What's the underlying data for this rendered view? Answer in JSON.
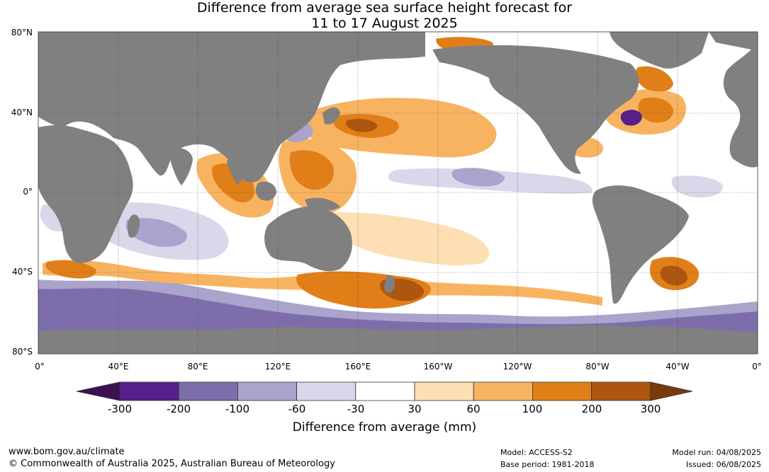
{
  "title": {
    "line1": "Difference from average sea surface height forecast for",
    "line2": "11 to 17 August 2025"
  },
  "lat_labels": [
    "80°N",
    "40°N",
    "0°",
    "40°S",
    "80°S"
  ],
  "lon_labels": [
    "0°",
    "40°E",
    "80°E",
    "120°E",
    "160°E",
    "160°W",
    "120°W",
    "80°W",
    "40°W",
    "0°"
  ],
  "colorbar": {
    "title": "Difference from average (mm)",
    "tick_labels": [
      "-300",
      "-200",
      "-100",
      "-60",
      "-30",
      "30",
      "60",
      "100",
      "200",
      "300"
    ],
    "colors": [
      "#3b1153",
      "#55208a",
      "#7d6eab",
      "#aaa4cc",
      "#d8d8ea",
      "#ffffff",
      "#fddfb3",
      "#f8b361",
      "#e07e18",
      "#ac5610",
      "#7a3a0b"
    ]
  },
  "land_color": "#808080",
  "footer": {
    "url": "www.bom.gov.au/climate",
    "copyright": "© Commonwealth of Australia 2025, Australian Bureau of Meteorology",
    "model": "Model: ACCESS-S2",
    "base_period": "Base period: 1981-2018",
    "model_run": "Model run: 04/08/2025",
    "issued": "Issued: 06/08/2025"
  }
}
